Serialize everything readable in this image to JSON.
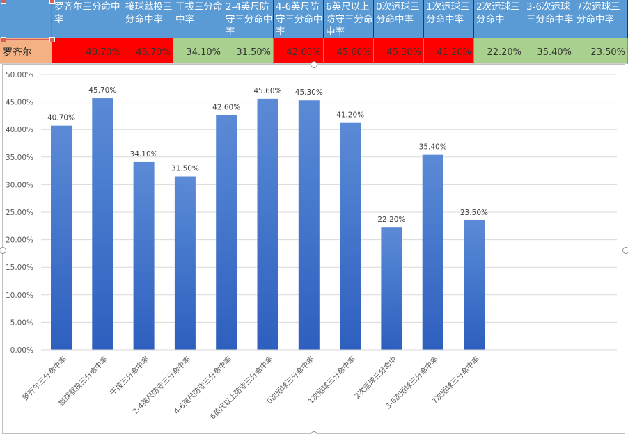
{
  "table": {
    "headers": [
      "",
      "罗齐尔三分命中率",
      "接球就投三分命中率",
      "干拔三分命中率",
      "2-4英尺防守三分命中率",
      "4-6英尺防守三分命中率",
      "6英尺以上防守三分命中率",
      "0次运球三分命中率",
      "1次运球三分命中率",
      "2次运球三分命中",
      "3-6次运球三分命中率",
      "7次运球三分命中率"
    ],
    "row_label": "罗齐尔",
    "row_values": [
      "40.70%",
      "45.70%",
      "34.10%",
      "31.50%",
      "42.60%",
      "45.60%",
      "45.30%",
      "41.20%",
      "22.20%",
      "35.40%",
      "23.50%"
    ],
    "cell_status": [
      "red",
      "red",
      "green",
      "green",
      "red",
      "red",
      "red",
      "red",
      "green",
      "green",
      "green"
    ],
    "colors": {
      "header_bg": "#5b9bd5",
      "name_bg": "#f4b183",
      "red": "#ff0000",
      "green": "#a9d08e"
    }
  },
  "chart_data": {
    "type": "bar",
    "categories": [
      "罗齐尔三分命中率",
      "接球就投三分命中率",
      "干拔三分命中率",
      "2-4英尺防守三分命中率",
      "4-6英尺防守三分命中率",
      "6英尺以上防守三分命中率",
      "0次运球三分命中率",
      "1次运球三分命中率",
      "2次运球三分命中",
      "3-6次运球三分命中率",
      "7次运球三分命中率"
    ],
    "values": [
      40.7,
      45.7,
      34.1,
      31.5,
      42.6,
      45.6,
      45.3,
      41.2,
      22.2,
      35.4,
      23.5
    ],
    "data_labels": [
      "40.70%",
      "45.70%",
      "34.10%",
      "31.50%",
      "42.60%",
      "45.60%",
      "45.30%",
      "41.20%",
      "22.20%",
      "35.40%",
      "23.50%"
    ],
    "y_ticks": [
      "0.00%",
      "5.00%",
      "10.00%",
      "15.00%",
      "20.00%",
      "25.00%",
      "30.00%",
      "35.00%",
      "40.00%",
      "45.00%",
      "50.00%"
    ],
    "ylim": [
      0,
      50
    ],
    "grid": true,
    "legend": "none",
    "bar_color_top": "#5b8bd6",
    "bar_color_bottom": "#2e5fbf"
  }
}
